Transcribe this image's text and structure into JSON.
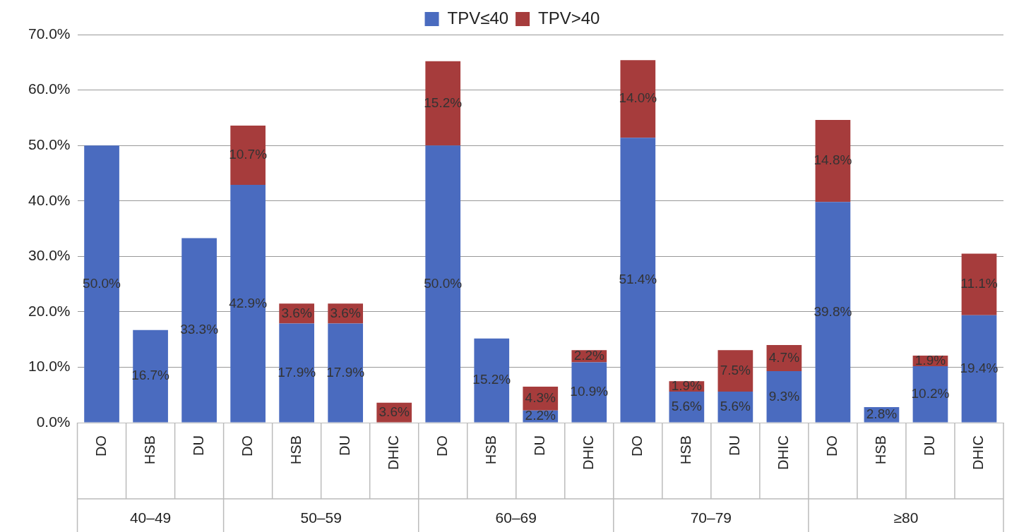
{
  "chart_data": {
    "type": "bar",
    "stacked": true,
    "legend": "top",
    "grid": "y",
    "categories": [
      "DO",
      "HSB",
      "DU",
      "DO",
      "HSB",
      "DU",
      "DHIC",
      "DO",
      "HSB",
      "DU",
      "DHIC",
      "DO",
      "HSB",
      "DU",
      "DHIC",
      "DO",
      "HSB",
      "DU",
      "DHIC"
    ],
    "annotations": [
      "40–49",
      "50–59",
      "60–69",
      "70–79",
      "≥80"
    ],
    "ylim": [
      0,
      70
    ],
    "yticks": [
      {
        "value": 0,
        "label": "0.0%"
      },
      {
        "value": 10,
        "label": "10.0%"
      },
      {
        "value": 20,
        "label": "20.0%"
      },
      {
        "value": 30,
        "label": "30.0%"
      },
      {
        "value": 40,
        "label": "40.0%"
      },
      {
        "value": 50,
        "label": "50.0%"
      },
      {
        "value": 60,
        "label": "60.0%"
      },
      {
        "value": 70,
        "label": "70.0%"
      }
    ],
    "series": [
      {
        "name": "TPV≤40",
        "color": "#4a6bbf",
        "values": [
          50.0,
          16.7,
          33.3,
          42.9,
          17.9,
          17.9,
          null,
          50.0,
          15.2,
          2.2,
          10.9,
          51.4,
          5.6,
          5.6,
          9.3,
          39.8,
          2.8,
          10.2,
          19.4
        ],
        "value_labels": [
          "50.0%",
          "16.7%",
          "33.3%",
          "42.9%",
          "17.9%",
          "17.9%",
          null,
          "50.0%",
          "15.2%",
          "2.2%",
          "10.9%",
          "51.4%",
          "5.6%",
          "5.6%",
          "9.3%",
          "39.8%",
          "2.8%",
          "10.2%",
          "19.4%"
        ]
      },
      {
        "name": "TPV>40",
        "color": "#a63c3c",
        "values": [
          null,
          null,
          null,
          10.7,
          3.6,
          3.6,
          3.6,
          15.2,
          null,
          4.3,
          2.2,
          14.0,
          1.9,
          7.5,
          4.7,
          14.8,
          null,
          1.9,
          11.1
        ],
        "value_labels": [
          null,
          null,
          null,
          "10.7%",
          "3.6%",
          "3.6%",
          "3.6%",
          "15.2%",
          null,
          "4.3%",
          "2.2%",
          "14.0%",
          "1.9%",
          "7.5%",
          "4.7%",
          "14.8%",
          null,
          "1.9%",
          "11.1%"
        ]
      }
    ]
  }
}
